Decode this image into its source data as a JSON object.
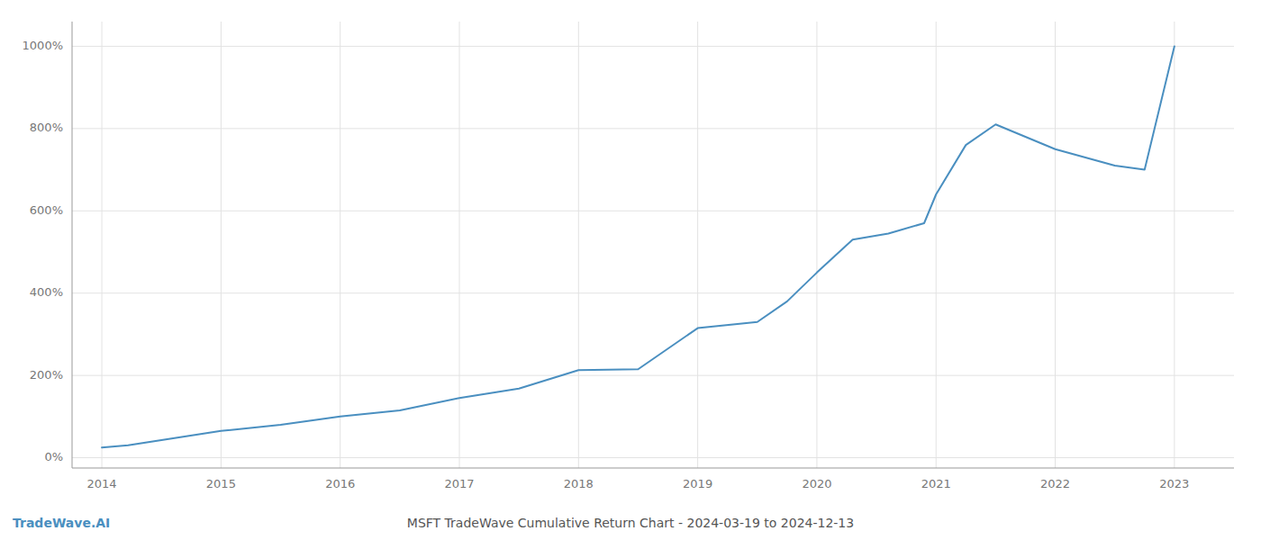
{
  "chart_data": {
    "type": "line",
    "title": "MSFT TradeWave Cumulative Return Chart - 2024-03-19 to 2024-12-13",
    "annotations": [
      "TradeWave.AI"
    ],
    "x": [
      2014,
      2014.22,
      2015.0,
      2015.5,
      2016.0,
      2016.5,
      2017.0,
      2017.5,
      2018.0,
      2018.5,
      2019.0,
      2019.5,
      2019.75,
      2020.0,
      2020.3,
      2020.6,
      2020.9,
      2021.0,
      2021.25,
      2021.5,
      2022.0,
      2022.5,
      2022.75,
      2023.0
    ],
    "values": [
      25,
      30,
      65,
      80,
      100,
      115,
      145,
      168,
      213,
      215,
      315,
      330,
      380,
      450,
      530,
      545,
      570,
      640,
      760,
      810,
      750,
      710,
      700,
      1000
    ],
    "color": "#4a8fc0",
    "xlim": [
      2013.75,
      2023.5
    ],
    "xticks": [
      2014,
      2015,
      2016,
      2017,
      2018,
      2019,
      2020,
      2021,
      2022,
      2023
    ],
    "ylim": [
      -25,
      1060
    ],
    "yticks": [
      {
        "value": 0,
        "label": "0%"
      },
      {
        "value": 200,
        "label": "200%"
      },
      {
        "value": 400,
        "label": "400%"
      },
      {
        "value": 600,
        "label": "600%"
      },
      {
        "value": 800,
        "label": "800%"
      },
      {
        "value": 1000,
        "label": "1000%"
      }
    ],
    "grid": true
  }
}
